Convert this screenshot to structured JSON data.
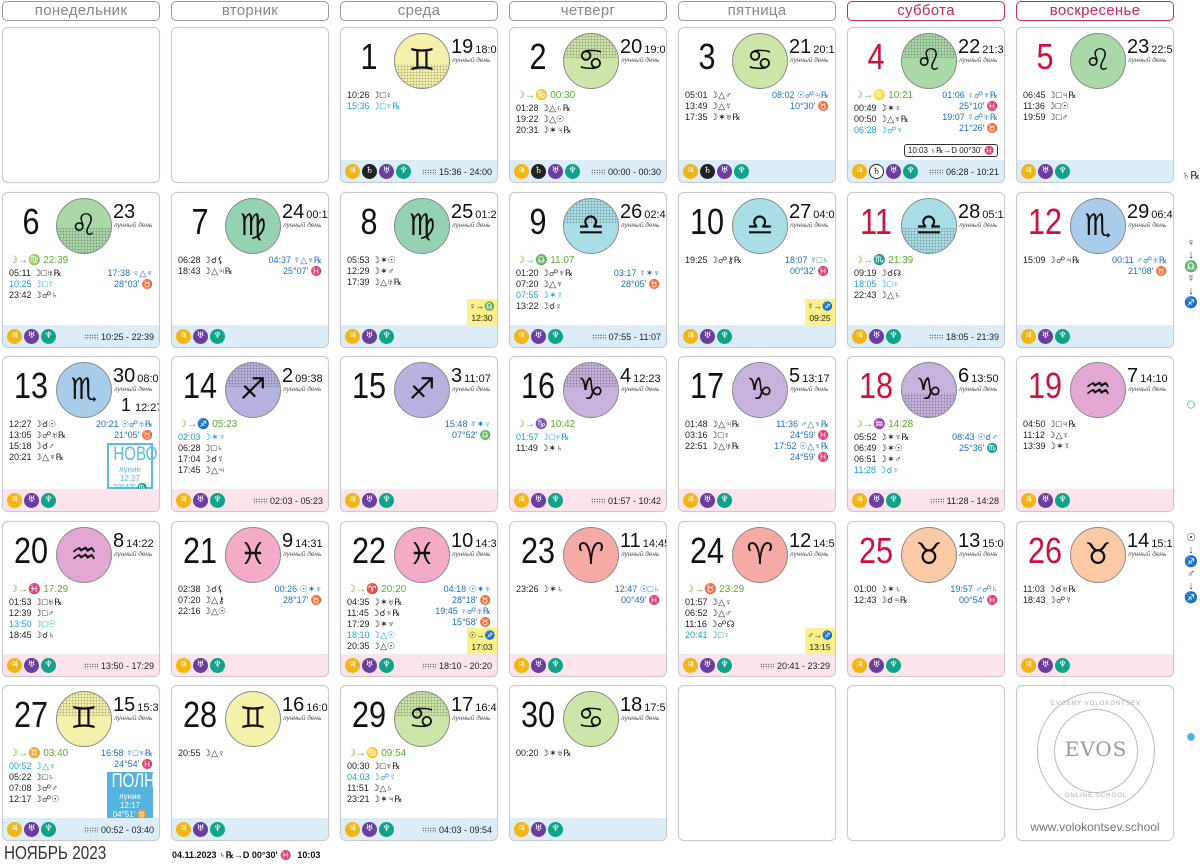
{
  "weekdays": [
    {
      "label": "понедельник",
      "weekend": false
    },
    {
      "label": "вторник",
      "weekend": false
    },
    {
      "label": "среда",
      "weekend": false
    },
    {
      "label": "четверг",
      "weekend": false
    },
    {
      "label": "пятница",
      "weekend": false
    },
    {
      "label": "суббота",
      "weekend": true
    },
    {
      "label": "воскресенье",
      "weekend": true
    }
  ],
  "lunar_day_label": "лунный день",
  "colors": {
    "red_day": "#d0103a",
    "band_blue": "#dcedf8",
    "band_pink": "#fbe4eb",
    "jupiter": "#f3b512",
    "saturn": "#222222",
    "uranus": "#6a3d9e",
    "neptune": "#0fa389",
    "ingress": "#5eac2f",
    "aspect_blue": "#1a6fc0",
    "aspect_cyan": "#18a3d8"
  },
  "signs": {
    "gemini": {
      "glyph": "♊︎",
      "color": "#f4f1aa"
    },
    "cancer": {
      "glyph": "♋︎",
      "color": "#cde5a8"
    },
    "leo": {
      "glyph": "♌︎",
      "color": "#abd8a8"
    },
    "virgo": {
      "glyph": "♍︎",
      "color": "#95d1b3"
    },
    "libra": {
      "glyph": "♎︎",
      "color": "#aadee7"
    },
    "scorpio": {
      "glyph": "♏︎",
      "color": "#a9cceb"
    },
    "sagittarius": {
      "glyph": "♐︎",
      "color": "#b5b4e0"
    },
    "capricorn": {
      "glyph": "♑︎",
      "color": "#c6b3dd"
    },
    "aquarius": {
      "glyph": "♒︎",
      "color": "#e2a7d2"
    },
    "pisces": {
      "glyph": "♓︎",
      "color": "#f3abc9"
    },
    "aries": {
      "glyph": "♈︎",
      "color": "#f6aaa5"
    },
    "taurus": {
      "glyph": "♉︎",
      "color": "#f9caa5"
    }
  },
  "planet_glyphs": {
    "jupiter": "♃",
    "saturn": "♄",
    "uranus": "♅",
    "neptune": "♆"
  },
  "days": [
    {
      "empty": true
    },
    {
      "empty": true
    },
    {
      "day": "1",
      "sign": "gemini",
      "hatch": "bottom",
      "lday": "19",
      "ltime": "18:08",
      "left": [
        [
          "10:26",
          "☽□♀"
        ],
        [
          "15:36",
          "☽□♆℞",
          "c"
        ]
      ],
      "right": [],
      "planets": [
        "jupiter",
        "saturn",
        "uranus",
        "neptune"
      ],
      "void": "15:36 - 24:00",
      "band": "blue"
    },
    {
      "day": "2",
      "sign": "cancer",
      "hatch": "top",
      "lday": "20",
      "ltime": "19:02",
      "ingress": "☽→♋ 00:30",
      "left": [
        [
          "01:28",
          "☽△♄℞"
        ],
        [
          "19:22",
          "☽△☉"
        ],
        [
          "20:31",
          "☽✶♃℞"
        ]
      ],
      "right": [],
      "planets": [
        "jupiter",
        "saturn",
        "uranus",
        "neptune"
      ],
      "void": "00:00 - 00:30",
      "band": "blue"
    },
    {
      "day": "3",
      "sign": "cancer",
      "lday": "21",
      "ltime": "20:13",
      "left": [
        [
          "05:01",
          "☽△♂"
        ],
        [
          "13:49",
          "☽△☿"
        ],
        [
          "17:35",
          "☽✶♅℞"
        ]
      ],
      "right": [
        [
          "08:02 ☉☍♃℞"
        ],
        [
          "10°30' ♉"
        ]
      ],
      "planets": [
        "jupiter",
        "saturn",
        "uranus",
        "neptune"
      ],
      "band": "blue"
    },
    {
      "day": "4",
      "red": true,
      "sign": "leo",
      "hatch": "top",
      "lday": "22",
      "ltime": "21:31",
      "ingress": "☽→♌ 10:21",
      "left": [
        [
          "00:49",
          "☽✶♀"
        ],
        [
          "00:50",
          "☽△♆℞"
        ],
        [
          "06:28",
          "☽☍♆",
          "c"
        ]
      ],
      "right": [
        [
          "01:06 ♀☍♆℞"
        ],
        [
          "25°10' ♓"
        ],
        [
          "19:07 ☿☍♅℞"
        ],
        [
          "21°26' ♉"
        ]
      ],
      "station": "10:03 ♄℞→D 00°30' ♓",
      "planets": [
        "jupiter",
        "saturn-outline",
        "uranus",
        "neptune"
      ],
      "void": "06:28 - 10:21",
      "band": "blue"
    },
    {
      "day": "5",
      "red": true,
      "sign": "leo",
      "lday": "23",
      "ltime": "22:52",
      "left": [
        [
          "06:45",
          "☽□♃℞"
        ],
        [
          "11:36",
          "☽□☉"
        ],
        [
          "19:59",
          "☽□♂"
        ]
      ],
      "right": [],
      "planets": [
        "jupiter",
        "uranus",
        "neptune"
      ],
      "band": "blue"
    },
    {
      "day": "6",
      "sign": "leo",
      "hatch": "bottom",
      "lday": "23",
      "ltime": "",
      "ingress": "☽→♍ 22:39",
      "left": [
        [
          "05:11",
          "☽□♅℞"
        ],
        [
          "10:25",
          "☽□☿",
          "c"
        ],
        [
          "23:42",
          "☽☍♄"
        ]
      ],
      "right": [
        [
          "17:38 ♀△♆"
        ],
        [
          "28°03' ♉"
        ]
      ],
      "planets": [
        "jupiter",
        "uranus",
        "neptune"
      ],
      "void": "10:25 - 22:39",
      "band": "blue"
    },
    {
      "day": "7",
      "sign": "virgo",
      "lday": "24",
      "ltime": "00:11",
      "left": [
        [
          "06:28",
          "☽☌⚸"
        ],
        [
          "18:43",
          "☽△♃℞"
        ]
      ],
      "right": [
        [
          "04:37 ☿△♆℞"
        ],
        [
          "25°07' ♓"
        ]
      ],
      "planets": [
        "jupiter",
        "uranus",
        "neptune"
      ],
      "band": "blue"
    },
    {
      "day": "8",
      "sign": "virgo",
      "lday": "25",
      "ltime": "01:28",
      "left": [
        [
          "05:53",
          "☽✶☉"
        ],
        [
          "12:29",
          "☽✶♂"
        ],
        [
          "17:39",
          "☽△♅℞"
        ]
      ],
      "right": [],
      "ingress_box": [
        "♀→♎",
        "12:30"
      ],
      "planets": [
        "jupiter",
        "uranus",
        "neptune"
      ],
      "band": "blue"
    },
    {
      "day": "9",
      "sign": "libra",
      "hatch": "top",
      "lday": "26",
      "ltime": "02:44",
      "ingress": "☽→♎ 11:07",
      "left": [
        [
          "01:20",
          "☽☍♆℞"
        ],
        [
          "07:20",
          "☽△♆"
        ],
        [
          "07:55",
          "☽✶☿",
          "c"
        ],
        [
          "13:22",
          "☽☌♀"
        ]
      ],
      "right": [
        [
          "03:17 ☿✶♆"
        ],
        [
          "28°05' ♉"
        ]
      ],
      "planets": [
        "jupiter",
        "uranus",
        "neptune"
      ],
      "void": "07:55 - 11:07",
      "band": "blue"
    },
    {
      "day": "10",
      "sign": "libra",
      "lday": "27",
      "ltime": "04:00",
      "left": [
        [
          "19:25",
          "☽☍⚷℞"
        ]
      ],
      "right": [
        [
          "18:07 ☿□♄"
        ],
        [
          "00°32' ♓"
        ]
      ],
      "ingress_box": [
        "☿→♐",
        "09:25"
      ],
      "planets": [
        "jupiter",
        "uranus",
        "neptune"
      ],
      "band": "blue"
    },
    {
      "day": "11",
      "red": true,
      "sign": "libra",
      "hatch": "bottom",
      "lday": "28",
      "ltime": "05:19",
      "ingress": "☽→♏ 21:39",
      "left": [
        [
          "09:19",
          "☽☌☊"
        ],
        [
          "18:05",
          "☽□♆",
          "c"
        ],
        [
          "22:43",
          "☽△♄"
        ]
      ],
      "right": [],
      "planets": [
        "jupiter",
        "uranus",
        "neptune"
      ],
      "void": "18:05 - 21:39",
      "band": "blue"
    },
    {
      "day": "12",
      "red": true,
      "sign": "scorpio",
      "lday": "29",
      "ltime": "06:41",
      "left": [
        [
          "15:09",
          "☽☍♃℞"
        ]
      ],
      "right": [
        [
          "00:11 ♂☍♅℞"
        ],
        [
          "21°08' ♉"
        ]
      ],
      "planets": [
        "jupiter",
        "uranus",
        "neptune"
      ],
      "band": "blue"
    },
    {
      "day": "13",
      "sign": "scorpio",
      "lday": "30",
      "ltime": "08:08",
      "new_lday": "1",
      "new_ltime": "12:27",
      "left": [
        [
          "12:27",
          "☽☌☉"
        ],
        [
          "13:05",
          "☽☍♅℞"
        ],
        [
          "15:18",
          "☽☌♂"
        ],
        [
          "20:21",
          "☽△♆℞"
        ]
      ],
      "right": [
        [
          "20:21 ☉☍♅℞"
        ],
        [
          "21°05' ♉"
        ]
      ],
      "moonbox": {
        "kind": "new",
        "title": "НОВО",
        "sub": "луние",
        "time": "12:27",
        "pos": "20°43' ♏"
      },
      "planets": [
        "jupiter",
        "uranus",
        "neptune"
      ],
      "band": "pink"
    },
    {
      "day": "14",
      "sign": "sagittarius",
      "hatch": "top",
      "lday": "2",
      "ltime": "09:38",
      "ingress": "☽→♐ 05:23",
      "left": [
        [
          "02:03",
          "☽✶♆",
          "c"
        ],
        [
          "06:28",
          "☽□♄"
        ],
        [
          "17:04",
          "☽☌☿"
        ],
        [
          "17:45",
          "☽△♃"
        ]
      ],
      "right": [],
      "planets": [
        "jupiter",
        "uranus",
        "neptune"
      ],
      "void": "02:03 - 05:23",
      "band": "pink"
    },
    {
      "day": "15",
      "sign": "sagittarius",
      "lday": "3",
      "ltime": "11:07",
      "left": [],
      "right": [
        [
          "15:48 ☿✶♀"
        ],
        [
          "07°52' ♎"
        ]
      ],
      "planets": [
        "jupiter",
        "uranus",
        "neptune"
      ],
      "band": "pink"
    },
    {
      "day": "16",
      "sign": "capricorn",
      "hatch": "top",
      "lday": "4",
      "ltime": "12:23",
      "ingress": "☽→♑ 10:42",
      "left": [
        [
          "01:57",
          "☽□♆℞",
          "c"
        ],
        [
          "11:49",
          "☽✶♄"
        ]
      ],
      "right": [],
      "planets": [
        "jupiter",
        "uranus",
        "neptune"
      ],
      "void": "01:57 - 10:42",
      "band": "pink"
    },
    {
      "day": "17",
      "sign": "capricorn",
      "lday": "5",
      "ltime": "13:17",
      "left": [
        [
          "01:48",
          "☽△♃℞"
        ],
        [
          "03:16",
          "☽□♀"
        ],
        [
          "22:51",
          "☽△♅℞"
        ]
      ],
      "right": [
        [
          "11:36 ♂△♆℞"
        ],
        [
          "24°59' ♓"
        ],
        [
          "17:52 ☉△♆℞"
        ],
        [
          "24°59' ♓"
        ]
      ],
      "planets": [
        "jupiter",
        "uranus",
        "neptune"
      ],
      "band": "pink"
    },
    {
      "day": "18",
      "red": true,
      "sign": "capricorn",
      "hatch": "bottom",
      "lday": "6",
      "ltime": "13:50",
      "ingress": "☽→♒ 14:28",
      "left": [
        [
          "05:52",
          "☽✶♆℞"
        ],
        [
          "06:49",
          "☽✶☉"
        ],
        [
          "06:51",
          "☽✶♂"
        ],
        [
          "11:28",
          "☽☌♆",
          "c"
        ]
      ],
      "right": [
        [
          "08:43 ☉☌♂"
        ],
        [
          "25°36' ♏"
        ]
      ],
      "planets": [
        "jupiter",
        "uranus",
        "neptune"
      ],
      "void": "11:28 - 14:28",
      "band": "pink"
    },
    {
      "day": "19",
      "red": true,
      "sign": "aquarius",
      "lday": "7",
      "ltime": "14:10",
      "left": [
        [
          "04:50",
          "☽□♃℞"
        ],
        [
          "11:12",
          "☽△♀"
        ],
        [
          "13:39",
          "☽✶☿"
        ]
      ],
      "right": [],
      "planets": [
        "jupiter",
        "uranus",
        "neptune"
      ],
      "band": "pink"
    },
    {
      "day": "20",
      "sign": "aquarius",
      "lday": "8",
      "ltime": "14:22",
      "ingress": "☽→♓ 17:29",
      "left": [
        [
          "01:53",
          "☽□♅℞"
        ],
        [
          "12:39",
          "☽□♂"
        ],
        [
          "13:50",
          "☽□☉",
          "c"
        ],
        [
          "18:45",
          "☽☌♄"
        ]
      ],
      "right": [],
      "planets": [
        "jupiter",
        "uranus",
        "neptune"
      ],
      "void": "13:50 - 17:29",
      "band": "pink"
    },
    {
      "day": "21",
      "sign": "pisces",
      "lday": "9",
      "ltime": "14:31",
      "left": [
        [
          "02:38",
          "☽☌⚸"
        ],
        [
          "07:20",
          "☽△⚷"
        ],
        [
          "22:16",
          "☽△☉"
        ]
      ],
      "right": [
        [
          "00:26 ☉✶♆"
        ],
        [
          "28°17' ♉"
        ]
      ],
      "planets": [
        "jupiter",
        "uranus",
        "neptune"
      ],
      "band": "pink"
    },
    {
      "day": "22",
      "sign": "pisces",
      "lday": "10",
      "ltime": "14:39",
      "ingress": "☽→♈ 20:20",
      "left": [
        [
          "04:35",
          "☽✶♅℞"
        ],
        [
          "11:45",
          "☽☌♆℞"
        ],
        [
          "17:29",
          "☽✶♆"
        ],
        [
          "18:10",
          "☽△☉",
          "c"
        ],
        [
          "20:35",
          "☽△☉"
        ]
      ],
      "right": [
        [
          "04:18 ☉✶♆"
        ],
        [
          "28°18' ♉"
        ],
        [
          "19:45 ♀☍♅℞"
        ],
        [
          "15°58' ♉"
        ]
      ],
      "ingress_box": [
        "☉→♐",
        "17:03"
      ],
      "planets": [
        "jupiter",
        "uranus",
        "neptune"
      ],
      "void": "18:10 - 20:20",
      "band": "pink"
    },
    {
      "day": "23",
      "sign": "aries",
      "lday": "11",
      "ltime": "14:45",
      "left": [
        [
          "23:26",
          "☽✶♄"
        ]
      ],
      "right": [
        [
          "12:47 ☉□♄"
        ],
        [
          "00°49' ♓"
        ]
      ],
      "planets": [
        "jupiter",
        "uranus",
        "neptune"
      ],
      "band": "pink"
    },
    {
      "day": "24",
      "sign": "aries",
      "lday": "12",
      "ltime": "14:52",
      "ingress": "☽→♉ 23:29",
      "left": [
        [
          "01:57",
          "☽△♀"
        ],
        [
          "06:52",
          "☽△♂"
        ],
        [
          "11:16",
          "☽☍☊"
        ],
        [
          "20:41",
          "☽□♀",
          "c"
        ]
      ],
      "right": [],
      "ingress_box": [
        "♂→♐",
        "13:15"
      ],
      "planets": [
        "jupiter",
        "uranus",
        "neptune"
      ],
      "void": "20:41 - 23:29",
      "band": "pink"
    },
    {
      "day": "25",
      "red": true,
      "sign": "taurus",
      "lday": "13",
      "ltime": "15:01",
      "left": [
        [
          "01:00",
          "☽✶♄"
        ],
        [
          "12:43",
          "☽☌♃℞"
        ]
      ],
      "right": [
        [
          "19:57 ♂☍♄"
        ],
        [
          "00°54' ♓"
        ]
      ],
      "planets": [
        "jupiter",
        "uranus",
        "neptune"
      ],
      "band": "pink"
    },
    {
      "day": "26",
      "red": true,
      "sign": "taurus",
      "lday": "14",
      "ltime": "15:13",
      "left": [
        [
          "11:03",
          "☽☌♅℞"
        ],
        [
          "18:43",
          "☽☍☿"
        ]
      ],
      "right": [],
      "planets": [
        "jupiter",
        "uranus",
        "neptune"
      ],
      "band": "pink"
    },
    {
      "day": "27",
      "sign": "gemini",
      "hatch": "top",
      "lday": "15",
      "ltime": "15:32",
      "ingress": "☽→♊ 03:40",
      "left": [
        [
          "00:52",
          "☽△♆",
          "c"
        ],
        [
          "05:22",
          "☽□♄"
        ],
        [
          "07:08",
          "☽☍♂"
        ],
        [
          "12:17",
          "☽☍☉"
        ]
      ],
      "right": [
        [
          "16:58 ☿□♆℞"
        ],
        [
          "24°54' ♓"
        ]
      ],
      "moonbox": {
        "kind": "full",
        "title": "ПОЛНО",
        "sub": "луние",
        "time": "12:17",
        "pos": "04°51' ♊"
      },
      "planets": [
        "jupiter",
        "uranus",
        "neptune"
      ],
      "void": "00:52 - 03:40",
      "band": "blue"
    },
    {
      "day": "28",
      "sign": "gemini",
      "lday": "16",
      "ltime": "16:01",
      "left": [
        [
          "20:55",
          "☽△♀"
        ]
      ],
      "right": [],
      "planets": [
        "jupiter",
        "uranus",
        "neptune"
      ],
      "band": "blue"
    },
    {
      "day": "29",
      "sign": "cancer",
      "hatch": "top",
      "lday": "17",
      "ltime": "16:48",
      "ingress": "☽→♋ 09:54",
      "left": [
        [
          "00:30",
          "☽□♆℞"
        ],
        [
          "04:03",
          "☽☍☿",
          "c"
        ],
        [
          "11:51",
          "☽△♄"
        ],
        [
          "23:21",
          "☽✶♃℞"
        ]
      ],
      "right": [],
      "planets": [
        "jupiter",
        "uranus",
        "neptune"
      ],
      "void": "04:03 - 09:54",
      "band": "blue"
    },
    {
      "day": "30",
      "sign": "cancer",
      "lday": "18",
      "ltime": "17:52",
      "left": [
        [
          "00:20",
          "☽✶♅℞"
        ]
      ],
      "right": [],
      "planets": [
        "jupiter",
        "uranus",
        "neptune"
      ],
      "band": "blue"
    },
    {
      "empty": true
    },
    {
      "empty": true
    },
    {
      "empty": true,
      "logo": {
        "name": "EVGENY VOLOKONTSEV",
        "mark": "EVOS",
        "sub": "ONLINE SCHOOL",
        "url": "www.volokontsev.school"
      }
    }
  ],
  "side_markers": [
    [
      "♄℞D"
    ],
    [
      "♀",
      "↓",
      "♎",
      "",
      "☿",
      "↓",
      "♐"
    ],
    [
      "○"
    ],
    [
      "☉",
      "↓",
      "♐",
      "",
      "♂",
      "↓",
      "♐"
    ],
    [
      "●"
    ]
  ],
  "footer": {
    "month": "НОЯБРЬ 2023",
    "note": "04.11.2023 ♄℞→D 00°30' ♓",
    "note_time": "10:03"
  }
}
